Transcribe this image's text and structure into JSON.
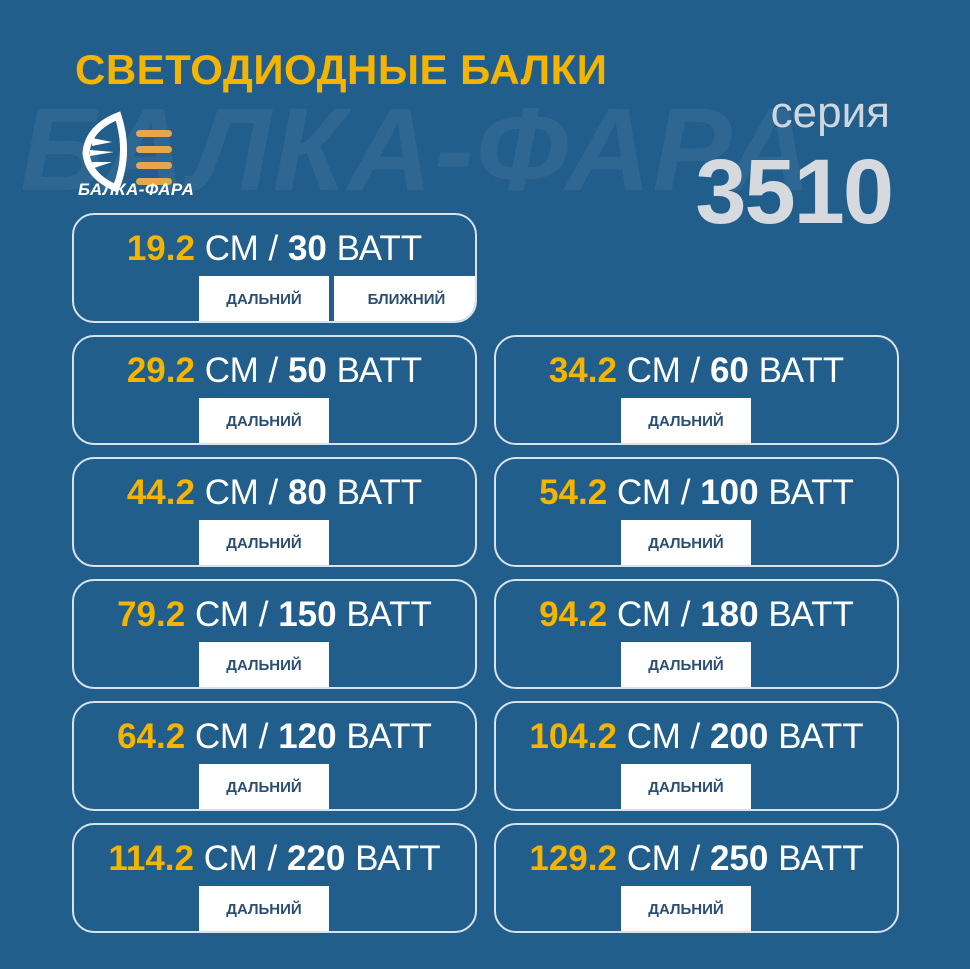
{
  "watermark": "БАЛКА-ФАРА",
  "title": "СВЕТОДИОДНЫЕ БАЛКИ",
  "logo": {
    "text": "БАЛКА-ФАРА",
    "accent": "#e8a54a"
  },
  "series": {
    "label": "серия",
    "number": "3510"
  },
  "colors": {
    "background": "#215e8c",
    "accent": "#f5b400"
  },
  "cards": [
    {
      "length": "19.2",
      "unit_len": "СМ",
      "sep": "/",
      "power": "30",
      "unit_pw": "ВАТТ",
      "badges": [
        "ДАЛЬНИЙ",
        "БЛИЖНИЙ"
      ]
    },
    {
      "length": "29.2",
      "unit_len": "СМ",
      "sep": "/",
      "power": "50",
      "unit_pw": "ВАТТ",
      "badges": [
        "ДАЛЬНИЙ"
      ]
    },
    {
      "length": "34.2",
      "unit_len": "СМ",
      "sep": "/",
      "power": "60",
      "unit_pw": "ВАТТ",
      "badges": [
        "ДАЛЬНИЙ"
      ]
    },
    {
      "length": "44.2",
      "unit_len": "СМ",
      "sep": "/",
      "power": "80",
      "unit_pw": "ВАТТ",
      "badges": [
        "ДАЛЬНИЙ"
      ]
    },
    {
      "length": "54.2",
      "unit_len": "СМ",
      "sep": "/",
      "power": "100",
      "unit_pw": "ВАТТ",
      "badges": [
        "ДАЛЬНИЙ"
      ]
    },
    {
      "length": "79.2",
      "unit_len": "СМ",
      "sep": "/",
      "power": "150",
      "unit_pw": "ВАТТ",
      "badges": [
        "ДАЛЬНИЙ"
      ]
    },
    {
      "length": "94.2",
      "unit_len": "СМ",
      "sep": "/",
      "power": "180",
      "unit_pw": "ВАТТ",
      "badges": [
        "ДАЛЬНИЙ"
      ]
    },
    {
      "length": "64.2",
      "unit_len": "СМ",
      "sep": "/",
      "power": "120",
      "unit_pw": "ВАТТ",
      "badges": [
        "ДАЛЬНИЙ"
      ]
    },
    {
      "length": "104.2",
      "unit_len": "СМ",
      "sep": "/",
      "power": "200",
      "unit_pw": "ВАТТ",
      "badges": [
        "ДАЛЬНИЙ"
      ]
    },
    {
      "length": "114.2",
      "unit_len": "СМ",
      "sep": "/",
      "power": "220",
      "unit_pw": "ВАТТ",
      "badges": [
        "ДАЛЬНИЙ"
      ]
    },
    {
      "length": "129.2",
      "unit_len": "СМ",
      "sep": "/",
      "power": "250",
      "unit_pw": "ВАТТ",
      "badges": [
        "ДАЛЬНИЙ"
      ]
    }
  ]
}
